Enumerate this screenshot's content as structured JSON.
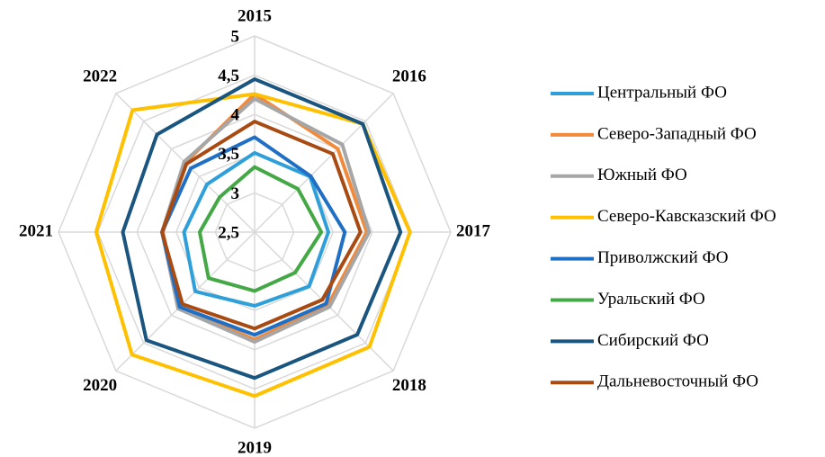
{
  "chart_data": {
    "type": "radar",
    "categories": [
      "2015",
      "2016",
      "2017",
      "2018",
      "2019",
      "2020",
      "2021",
      "2022"
    ],
    "rlim": [
      2.5,
      5
    ],
    "rticks": [
      {
        "value": 2.5,
        "label": "2,5"
      },
      3,
      {
        "value": 3.5,
        "label": "3,5"
      },
      4,
      {
        "value": 4.5,
        "label": "4,5"
      },
      5
    ],
    "grid": true,
    "legend": "right",
    "series": [
      {
        "name": "Центральный ФО",
        "color": "#2e9fd8",
        "values": [
          3.51,
          3.5,
          3.44,
          3.48,
          3.44,
          3.57,
          3.4,
          3.36
        ]
      },
      {
        "name": "Северо-Западный ФО",
        "color": "#f28a3c",
        "values": [
          4.26,
          4.0,
          3.93,
          3.82,
          3.87,
          3.86,
          3.67,
          3.75
        ]
      },
      {
        "name": "Южный ФО",
        "color": "#a6a6a6",
        "values": [
          4.2,
          4.08,
          3.96,
          3.85,
          3.9,
          3.88,
          3.68,
          3.77
        ]
      },
      {
        "name": "Северо-Кавсказский ФО",
        "color": "#ffc000",
        "values": [
          4.26,
          4.45,
          4.48,
          4.57,
          4.59,
          4.71,
          4.52,
          4.7
        ]
      },
      {
        "name": "Приволжский ФО",
        "color": "#1f6fc5",
        "values": [
          3.71,
          3.51,
          3.65,
          3.79,
          3.81,
          3.85,
          3.68,
          3.65
        ]
      },
      {
        "name": "Уральский ФО",
        "color": "#43a845",
        "values": [
          3.33,
          3.28,
          3.35,
          3.23,
          3.25,
          3.33,
          3.2,
          3.13
        ]
      },
      {
        "name": "Сибирский ФО",
        "color": "#1a5580",
        "values": [
          4.45,
          4.45,
          4.36,
          4.35,
          4.36,
          4.45,
          4.18,
          4.26
        ]
      },
      {
        "name": "Дальневосточный ФО",
        "color": "#a84a12",
        "values": [
          3.91,
          3.91,
          3.85,
          3.72,
          3.73,
          3.8,
          3.68,
          3.73
        ]
      }
    ]
  }
}
